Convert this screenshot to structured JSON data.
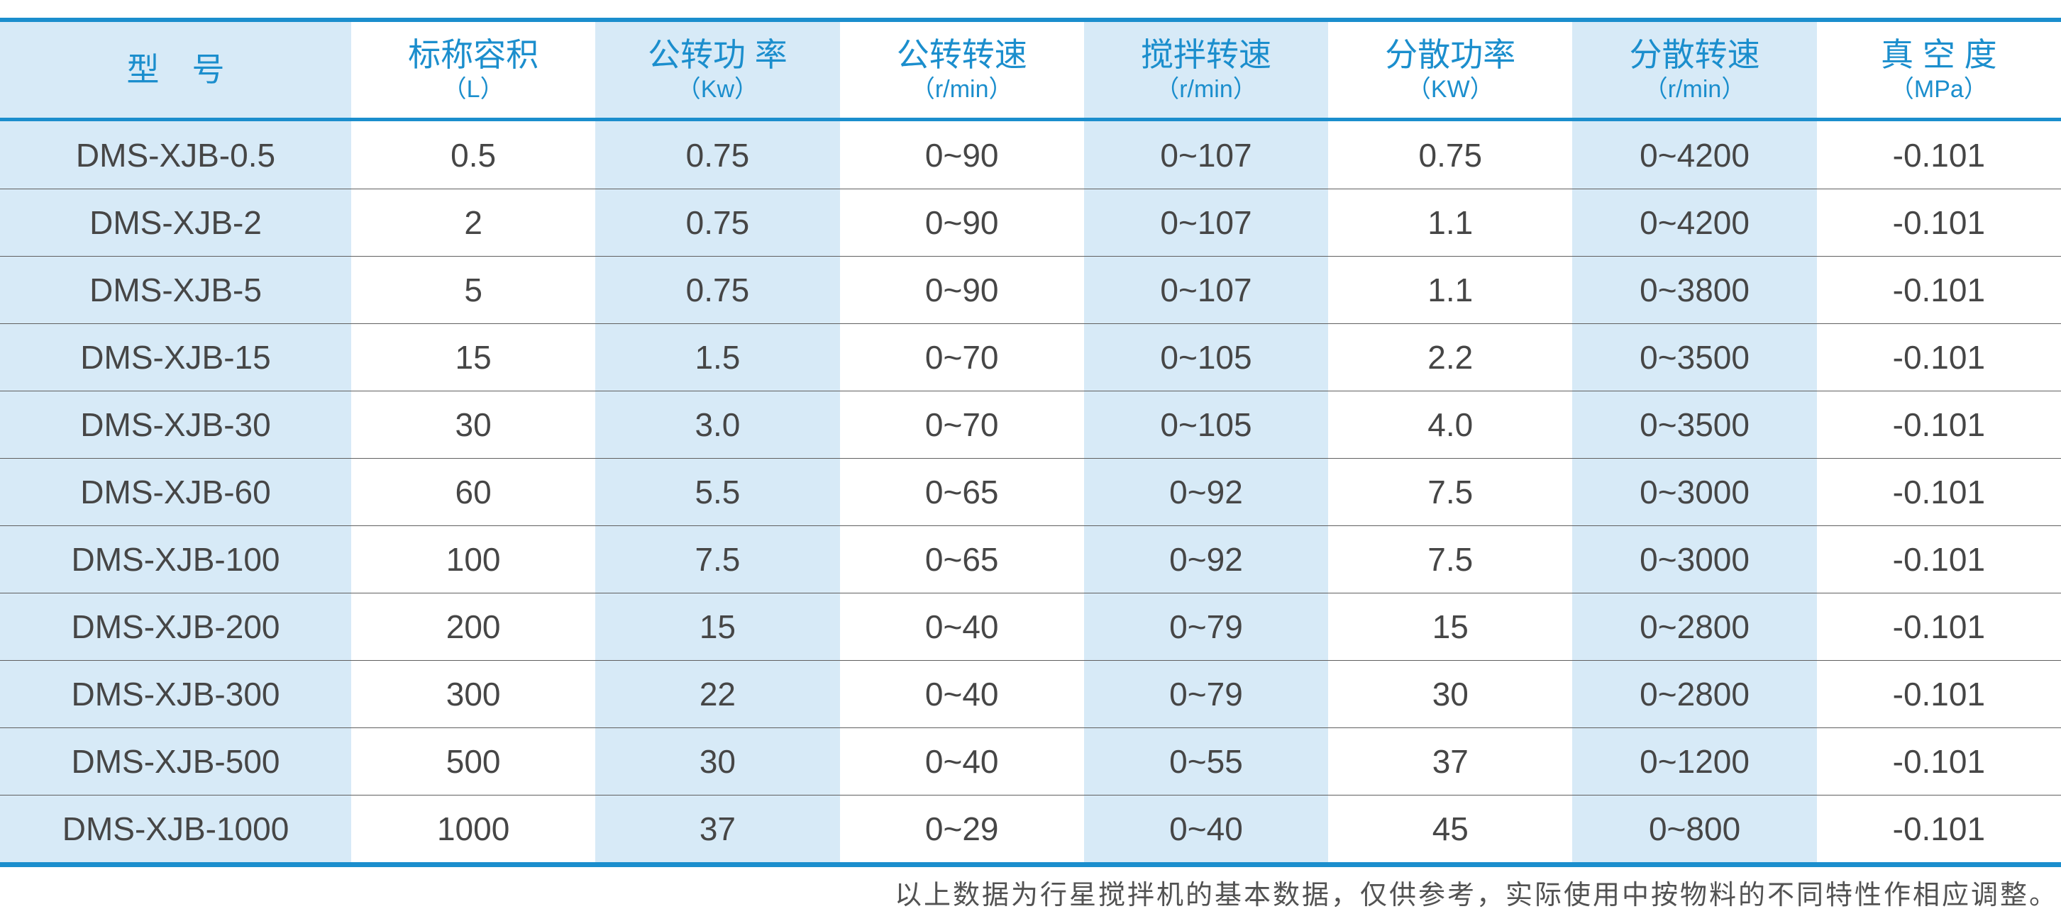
{
  "colors": {
    "accent": "#1b8ecd",
    "shade": "#d7eaf7",
    "text": "#464646",
    "separator": "#606060",
    "note": "#525252"
  },
  "table": {
    "columns": [
      {
        "title": "型　号",
        "unit": ""
      },
      {
        "title": "标称容积",
        "unit": "（L）"
      },
      {
        "title": "公转功 率",
        "unit": "（Kw）"
      },
      {
        "title": "公转转速",
        "unit": "（r/min）"
      },
      {
        "title": "搅拌转速",
        "unit": "（r/min）"
      },
      {
        "title": "分散功率",
        "unit": "（KW）"
      },
      {
        "title": "分散转速",
        "unit": "（r/min）"
      },
      {
        "title": "真 空 度",
        "unit": "（MPa）"
      }
    ],
    "rows": [
      [
        "DMS-XJB-0.5",
        "0.5",
        "0.75",
        "0~90",
        "0~107",
        "0.75",
        "0~4200",
        "-0.101"
      ],
      [
        "DMS-XJB-2",
        "2",
        "0.75",
        "0~90",
        "0~107",
        "1.1",
        "0~4200",
        "-0.101"
      ],
      [
        "DMS-XJB-5",
        "5",
        "0.75",
        "0~90",
        "0~107",
        "1.1",
        "0~3800",
        "-0.101"
      ],
      [
        "DMS-XJB-15",
        "15",
        "1.5",
        "0~70",
        "0~105",
        "2.2",
        "0~3500",
        "-0.101"
      ],
      [
        "DMS-XJB-30",
        "30",
        "3.0",
        "0~70",
        "0~105",
        "4.0",
        "0~3500",
        "-0.101"
      ],
      [
        "DMS-XJB-60",
        "60",
        "5.5",
        "0~65",
        "0~92",
        "7.5",
        "0~3000",
        "-0.101"
      ],
      [
        "DMS-XJB-100",
        "100",
        "7.5",
        "0~65",
        "0~92",
        "7.5",
        "0~3000",
        "-0.101"
      ],
      [
        "DMS-XJB-200",
        "200",
        "15",
        "0~40",
        "0~79",
        "15",
        "0~2800",
        "-0.101"
      ],
      [
        "DMS-XJB-300",
        "300",
        "22",
        "0~40",
        "0~79",
        "30",
        "0~2800",
        "-0.101"
      ],
      [
        "DMS-XJB-500",
        "500",
        "30",
        "0~40",
        "0~55",
        "37",
        "0~1200",
        "-0.101"
      ],
      [
        "DMS-XJB-1000",
        "1000",
        "37",
        "0~29",
        "0~40",
        "45",
        "0~800",
        "-0.101"
      ]
    ]
  },
  "footer": {
    "note": "以上数据为行星搅拌机的基本数据，仅供参考，实际使用中按物料的不同特性作相应调整。"
  }
}
